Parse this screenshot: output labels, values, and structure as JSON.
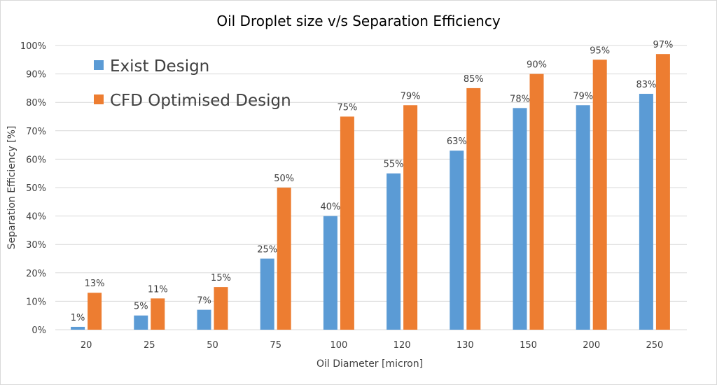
{
  "chart_data": {
    "type": "bar",
    "title": "Oil Droplet size v/s Separation Efficiency",
    "xlabel": "Oil Diameter [micron]",
    "ylabel": "Separation Efficiency [%]",
    "ylim": [
      0,
      100
    ],
    "yticks": [
      "0%",
      "10%",
      "20%",
      "30%",
      "40%",
      "50%",
      "60%",
      "70%",
      "80%",
      "90%",
      "100%"
    ],
    "grid": true,
    "legend_position": "top-left",
    "categories": [
      "20",
      "25",
      "50",
      "75",
      "100",
      "120",
      "130",
      "150",
      "200",
      "250"
    ],
    "series": [
      {
        "name": "Exist Design",
        "color": "#5b9bd5",
        "values": [
          1,
          5,
          7,
          25,
          40,
          55,
          63,
          78,
          79,
          83
        ],
        "labels": [
          "1%",
          "5%",
          "7%",
          "25%",
          "40%",
          "55%",
          "63%",
          "78%",
          "79%",
          "83%"
        ]
      },
      {
        "name": "CFD Optimised Design",
        "color": "#ed7d31",
        "values": [
          13,
          11,
          15,
          50,
          75,
          79,
          85,
          90,
          95,
          97
        ],
        "labels": [
          "13%",
          "11%",
          "15%",
          "50%",
          "75%",
          "79%",
          "85%",
          "90%",
          "95%",
          "97%"
        ]
      }
    ]
  }
}
